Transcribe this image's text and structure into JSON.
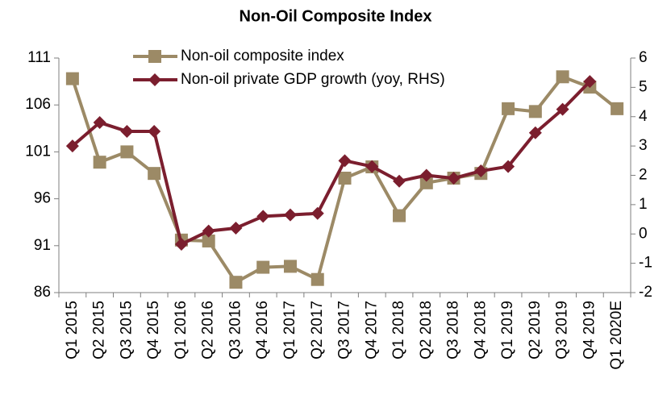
{
  "chart_data": {
    "type": "line",
    "title": "Non-Oil Composite Index",
    "categories": [
      "Q1 2015",
      "Q2 2015",
      "Q3 2015",
      "Q4 2015",
      "Q1 2016",
      "Q2 2016",
      "Q3 2016",
      "Q4 2016",
      "Q1 2017",
      "Q2 2017",
      "Q3 2017",
      "Q4 2017",
      "Q1 2018",
      "Q2 2018",
      "Q3 2018",
      "Q4 2018",
      "Q1 2019",
      "Q2 2019",
      "Q3 2019",
      "Q4 2019",
      "Q1 2020E"
    ],
    "series": [
      {
        "name": "Non-oil composite index",
        "color": "#9c8a66",
        "marker": "square",
        "values": [
          108.8,
          99.9,
          101.0,
          98.7,
          91.6,
          91.5,
          87.1,
          88.7,
          88.8,
          87.4,
          98.2,
          99.4,
          94.2,
          97.7,
          98.2,
          98.7,
          105.6,
          105.3,
          109.0,
          107.9,
          105.6
        ]
      },
      {
        "name": "Non-oil private GDP growth (yoy, RHS)",
        "color": "#7b1e2e",
        "marker": "diamond",
        "axis": "y2",
        "values": [
          3.0,
          3.8,
          3.5,
          3.5,
          -0.35,
          0.1,
          0.2,
          0.6,
          0.65,
          0.7,
          2.5,
          2.3,
          1.8,
          2.0,
          1.9,
          2.15,
          2.3,
          3.45,
          4.25,
          5.2,
          null
        ]
      }
    ],
    "ylim": [
      86,
      111
    ],
    "yticks": [
      86,
      91,
      96,
      101,
      106,
      111
    ],
    "y2lim": [
      -2,
      6
    ],
    "y2ticks": [
      -2,
      -1,
      0,
      1,
      2,
      3,
      4,
      5,
      6
    ],
    "grid": false
  }
}
